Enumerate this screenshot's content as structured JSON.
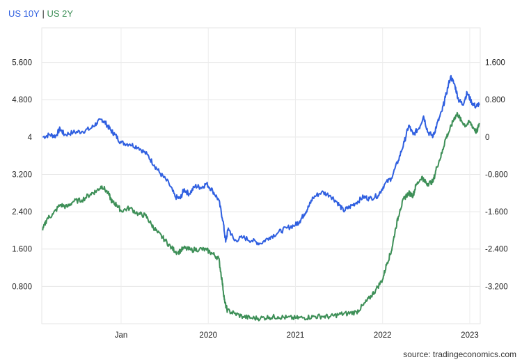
{
  "legend": {
    "series1": "US 10Y",
    "sep": "|",
    "series2": "US 2Y"
  },
  "source_text": "source: tradingeconomics.com",
  "chart_data": {
    "type": "line",
    "grid": true,
    "x_ticks": [
      "Jan",
      "2020",
      "2021",
      "2022",
      "2023"
    ],
    "x_tick_positions": [
      2019.0,
      2020.0,
      2021.0,
      2022.0,
      2023.0
    ],
    "x_range": [
      2018.09,
      2023.12
    ],
    "left_axis": {
      "ticks": [
        "0.800",
        "1.600",
        "2.400",
        "3.200",
        "4",
        "4.800",
        "5.600"
      ],
      "tick_values": [
        0.8,
        1.6,
        2.4,
        3.2,
        4.0,
        4.8,
        5.6
      ],
      "range": [
        0.0,
        6.34
      ]
    },
    "right_axis": {
      "ticks": [
        "-3.200",
        "-2.400",
        "-1.600",
        "-0.800",
        "0",
        "0.800",
        "1.600"
      ],
      "tick_values": [
        -3.2,
        -2.4,
        -1.6,
        -0.8,
        0.0,
        0.8,
        1.6
      ],
      "range": [
        -4.0,
        2.34
      ]
    },
    "series": [
      {
        "name": "US 10Y",
        "color": "#2f5fe0",
        "axis": "left",
        "points": [
          [
            2018.1,
            4.0
          ],
          [
            2018.18,
            4.05
          ],
          [
            2018.25,
            4.02
          ],
          [
            2018.3,
            4.18
          ],
          [
            2018.35,
            4.05
          ],
          [
            2018.45,
            4.1
          ],
          [
            2018.55,
            4.12
          ],
          [
            2018.65,
            4.18
          ],
          [
            2018.72,
            4.3
          ],
          [
            2018.78,
            4.38
          ],
          [
            2018.83,
            4.28
          ],
          [
            2018.88,
            4.15
          ],
          [
            2018.93,
            4.05
          ],
          [
            2019.0,
            3.88
          ],
          [
            2019.1,
            3.85
          ],
          [
            2019.2,
            3.78
          ],
          [
            2019.3,
            3.62
          ],
          [
            2019.38,
            3.4
          ],
          [
            2019.45,
            3.22
          ],
          [
            2019.55,
            3.0
          ],
          [
            2019.62,
            2.72
          ],
          [
            2019.68,
            2.68
          ],
          [
            2019.72,
            2.88
          ],
          [
            2019.78,
            2.78
          ],
          [
            2019.85,
            2.95
          ],
          [
            2019.92,
            2.92
          ],
          [
            2019.98,
            3.0
          ],
          [
            2020.05,
            2.85
          ],
          [
            2020.12,
            2.65
          ],
          [
            2020.17,
            2.2
          ],
          [
            2020.2,
            1.75
          ],
          [
            2020.23,
            2.05
          ],
          [
            2020.3,
            1.78
          ],
          [
            2020.4,
            1.85
          ],
          [
            2020.5,
            1.78
          ],
          [
            2020.6,
            1.72
          ],
          [
            2020.7,
            1.85
          ],
          [
            2020.8,
            1.95
          ],
          [
            2020.9,
            2.05
          ],
          [
            2021.0,
            2.12
          ],
          [
            2021.05,
            2.2
          ],
          [
            2021.1,
            2.35
          ],
          [
            2021.15,
            2.5
          ],
          [
            2021.2,
            2.7
          ],
          [
            2021.3,
            2.82
          ],
          [
            2021.4,
            2.75
          ],
          [
            2021.48,
            2.6
          ],
          [
            2021.55,
            2.42
          ],
          [
            2021.62,
            2.5
          ],
          [
            2021.7,
            2.6
          ],
          [
            2021.78,
            2.72
          ],
          [
            2021.85,
            2.68
          ],
          [
            2021.95,
            2.75
          ],
          [
            2022.02,
            2.98
          ],
          [
            2022.1,
            3.12
          ],
          [
            2022.18,
            3.5
          ],
          [
            2022.25,
            3.9
          ],
          [
            2022.3,
            4.25
          ],
          [
            2022.35,
            4.05
          ],
          [
            2022.42,
            4.2
          ],
          [
            2022.47,
            4.45
          ],
          [
            2022.52,
            4.1
          ],
          [
            2022.58,
            4.02
          ],
          [
            2022.62,
            4.25
          ],
          [
            2022.68,
            4.55
          ],
          [
            2022.72,
            4.85
          ],
          [
            2022.78,
            5.3
          ],
          [
            2022.83,
            5.1
          ],
          [
            2022.87,
            4.8
          ],
          [
            2022.92,
            4.7
          ],
          [
            2022.97,
            4.95
          ],
          [
            2023.02,
            4.75
          ],
          [
            2023.07,
            4.65
          ],
          [
            2023.11,
            4.72
          ]
        ]
      },
      {
        "name": "US 2Y",
        "color": "#3d8f57",
        "axis": "left",
        "points": [
          [
            2018.1,
            2.0
          ],
          [
            2018.15,
            2.25
          ],
          [
            2018.22,
            2.35
          ],
          [
            2018.3,
            2.55
          ],
          [
            2018.38,
            2.5
          ],
          [
            2018.45,
            2.62
          ],
          [
            2018.55,
            2.65
          ],
          [
            2018.65,
            2.78
          ],
          [
            2018.72,
            2.85
          ],
          [
            2018.78,
            2.95
          ],
          [
            2018.85,
            2.8
          ],
          [
            2018.9,
            2.6
          ],
          [
            2018.95,
            2.55
          ],
          [
            2019.0,
            2.42
          ],
          [
            2019.1,
            2.48
          ],
          [
            2019.2,
            2.35
          ],
          [
            2019.28,
            2.32
          ],
          [
            2019.35,
            2.12
          ],
          [
            2019.42,
            1.95
          ],
          [
            2019.5,
            1.8
          ],
          [
            2019.58,
            1.62
          ],
          [
            2019.65,
            1.52
          ],
          [
            2019.72,
            1.62
          ],
          [
            2019.8,
            1.58
          ],
          [
            2019.9,
            1.6
          ],
          [
            2019.98,
            1.58
          ],
          [
            2020.05,
            1.5
          ],
          [
            2020.12,
            1.4
          ],
          [
            2020.16,
            0.9
          ],
          [
            2020.19,
            0.45
          ],
          [
            2020.22,
            0.28
          ],
          [
            2020.3,
            0.22
          ],
          [
            2020.4,
            0.15
          ],
          [
            2020.5,
            0.12
          ],
          [
            2020.6,
            0.12
          ],
          [
            2020.7,
            0.14
          ],
          [
            2020.8,
            0.15
          ],
          [
            2020.9,
            0.13
          ],
          [
            2021.0,
            0.12
          ],
          [
            2021.1,
            0.13
          ],
          [
            2021.2,
            0.15
          ],
          [
            2021.3,
            0.16
          ],
          [
            2021.4,
            0.15
          ],
          [
            2021.5,
            0.2
          ],
          [
            2021.6,
            0.22
          ],
          [
            2021.7,
            0.25
          ],
          [
            2021.78,
            0.4
          ],
          [
            2021.85,
            0.55
          ],
          [
            2021.92,
            0.72
          ],
          [
            2022.0,
            0.95
          ],
          [
            2022.05,
            1.3
          ],
          [
            2022.1,
            1.55
          ],
          [
            2022.15,
            2.05
          ],
          [
            2022.2,
            2.45
          ],
          [
            2022.25,
            2.7
          ],
          [
            2022.3,
            2.8
          ],
          [
            2022.35,
            2.75
          ],
          [
            2022.38,
            2.95
          ],
          [
            2022.45,
            3.15
          ],
          [
            2022.48,
            3.05
          ],
          [
            2022.52,
            3.0
          ],
          [
            2022.58,
            3.05
          ],
          [
            2022.62,
            3.35
          ],
          [
            2022.68,
            3.65
          ],
          [
            2022.72,
            3.95
          ],
          [
            2022.77,
            4.15
          ],
          [
            2022.82,
            4.4
          ],
          [
            2022.86,
            4.5
          ],
          [
            2022.9,
            4.35
          ],
          [
            2022.95,
            4.25
          ],
          [
            2023.0,
            4.32
          ],
          [
            2023.05,
            4.18
          ],
          [
            2023.08,
            4.1
          ],
          [
            2023.11,
            4.3
          ]
        ]
      }
    ]
  }
}
